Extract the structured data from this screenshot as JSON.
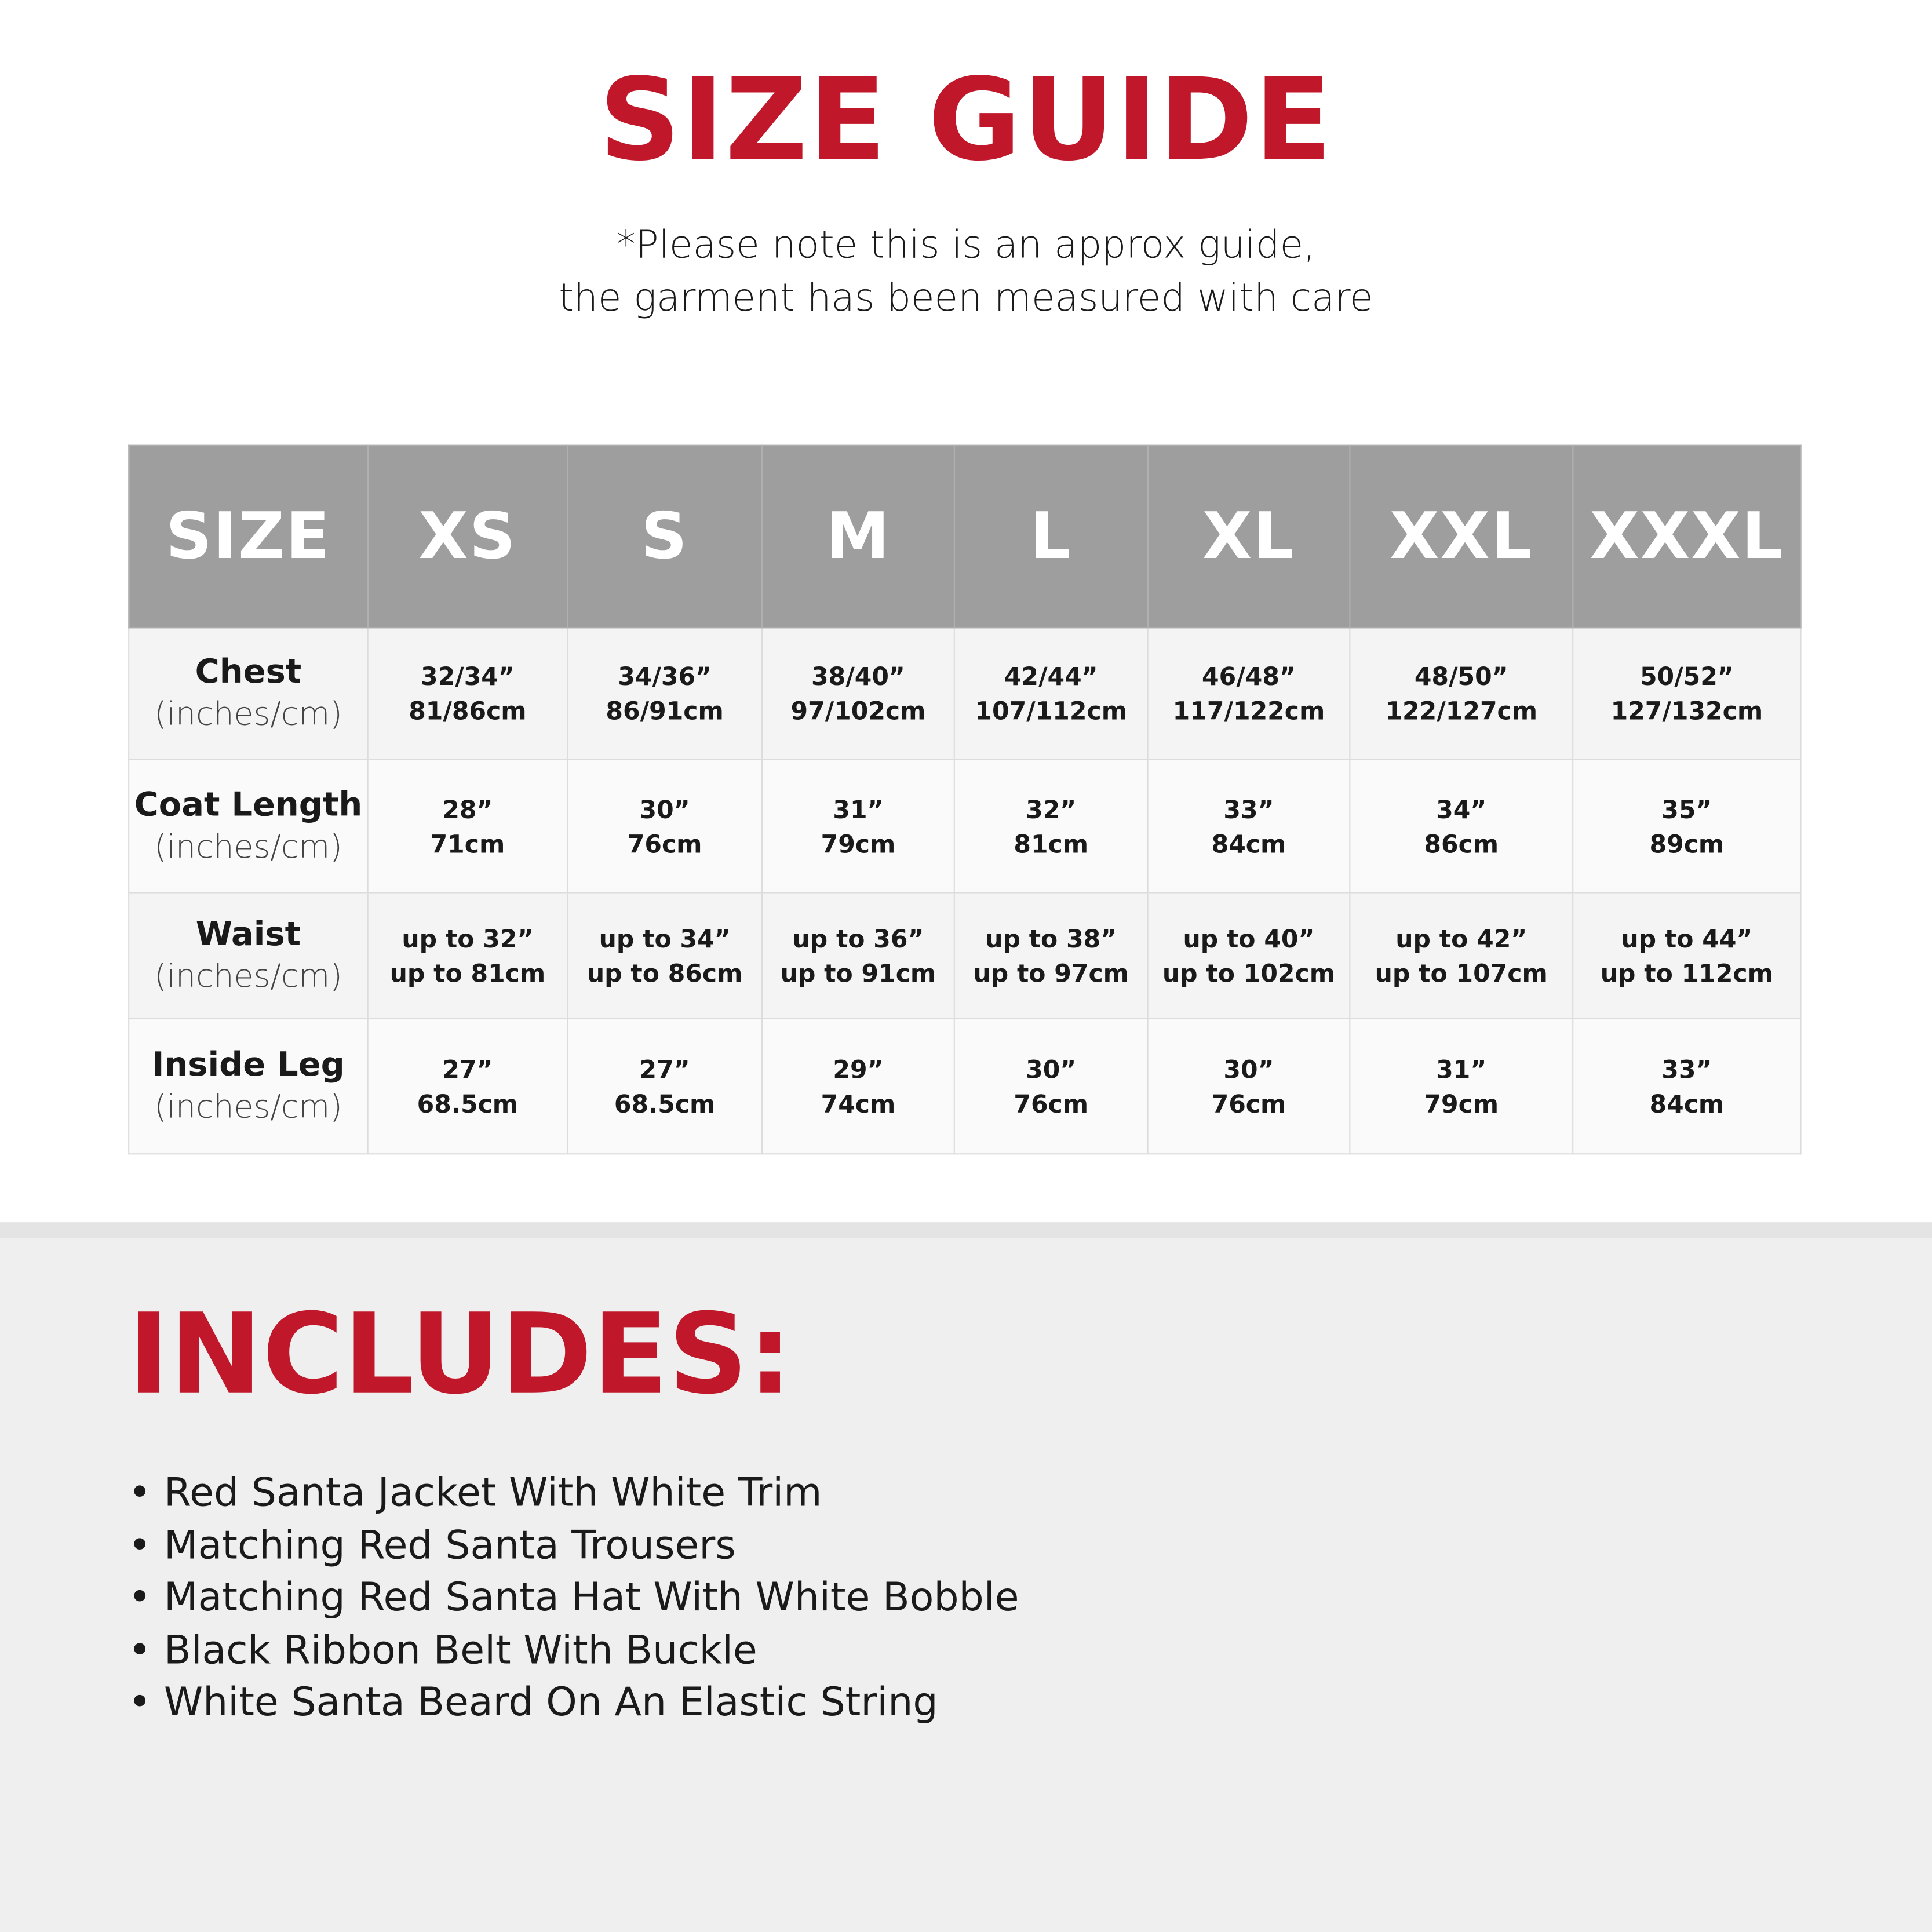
{
  "title": "SIZE GUIDE",
  "note": [
    "*Please note this is an approx guide,",
    "the garment has been measured with care"
  ],
  "table": {
    "header": [
      "SIZE",
      "XS",
      "S",
      "M",
      "L",
      "XL",
      "XXL",
      "XXXL"
    ],
    "rows": [
      {
        "label": "Chest",
        "unit": "(inches/cm)",
        "cells": [
          [
            "32/34”",
            "81/86cm"
          ],
          [
            "34/36”",
            "86/91cm"
          ],
          [
            "38/40”",
            "97/102cm"
          ],
          [
            "42/44”",
            "107/112cm"
          ],
          [
            "46/48”",
            "117/122cm"
          ],
          [
            "48/50”",
            "122/127cm"
          ],
          [
            "50/52”",
            "127/132cm"
          ]
        ]
      },
      {
        "label": "Coat Length",
        "unit": "(inches/cm)",
        "cells": [
          [
            "28”",
            "71cm"
          ],
          [
            "30”",
            "76cm"
          ],
          [
            "31”",
            "79cm"
          ],
          [
            "32”",
            "81cm"
          ],
          [
            "33”",
            "84cm"
          ],
          [
            "34”",
            "86cm"
          ],
          [
            "35”",
            "89cm"
          ]
        ]
      },
      {
        "label": "Waist",
        "unit": "(inches/cm)",
        "cells": [
          [
            "up to 32”",
            "up to 81cm"
          ],
          [
            "up to 34”",
            "up to 86cm"
          ],
          [
            "up to 36”",
            "up to 91cm"
          ],
          [
            "up to 38”",
            "up to 97cm"
          ],
          [
            "up to 40”",
            "up to 102cm"
          ],
          [
            "up to 42”",
            "up to 107cm"
          ],
          [
            "up to 44”",
            "up to 112cm"
          ]
        ]
      },
      {
        "label": "Inside Leg",
        "unit": "(inches/cm)",
        "cells": [
          [
            "27”",
            "68.5cm"
          ],
          [
            "27”",
            "68.5cm"
          ],
          [
            "29”",
            "74cm"
          ],
          [
            "30”",
            "76cm"
          ],
          [
            "30”",
            "76cm"
          ],
          [
            "31”",
            "79cm"
          ],
          [
            "33”",
            "84cm"
          ]
        ]
      }
    ]
  },
  "includes": {
    "title": "INCLUDES:",
    "items": [
      "Red Santa Jacket With White Trim",
      "Matching Red Santa Trousers",
      "Matching Red Santa Hat With White Bobble",
      "Black Ribbon Belt With Buckle",
      "White Santa Beard On An Elastic String"
    ]
  },
  "colors": {
    "accent": "#c0182a",
    "header_bg": "#9e9e9e",
    "band_bg": "#efefef"
  }
}
